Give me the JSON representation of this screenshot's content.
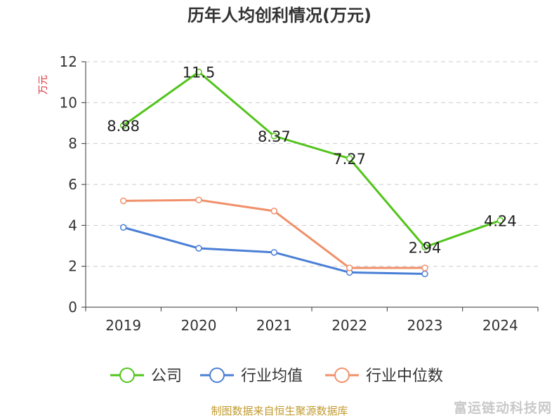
{
  "chart_data": {
    "type": "line",
    "title": "历年人均创利情况(万元)",
    "ylabel": "万元",
    "categories": [
      "2019",
      "2020",
      "2021",
      "2022",
      "2023",
      "2024"
    ],
    "ylim": [
      0,
      12
    ],
    "yticks": [
      0,
      2,
      4,
      6,
      8,
      10,
      12
    ],
    "grid": true,
    "legend_position": "bottom",
    "series": [
      {
        "name": "公司",
        "color": "#52c41a",
        "values": [
          8.88,
          11.5,
          8.37,
          7.27,
          2.94,
          4.24
        ],
        "labels": [
          "8.88",
          "11.5",
          "8.37",
          "7.27",
          "2.94",
          "4.24"
        ]
      },
      {
        "name": "行业均值",
        "color": "#4a7fd6",
        "values": [
          3.9,
          2.88,
          2.68,
          1.7,
          1.63,
          null
        ]
      },
      {
        "name": "行业中位数",
        "color": "#f0906a",
        "values": [
          5.2,
          5.24,
          4.7,
          1.92,
          1.92,
          null
        ]
      }
    ]
  },
  "source_note": "制图数据来自恒生聚源数据库",
  "watermark": "富运链动科技网"
}
